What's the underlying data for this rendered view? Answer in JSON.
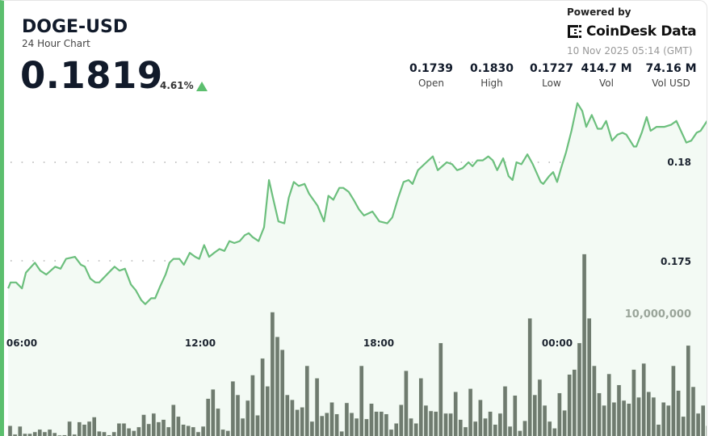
{
  "header": {
    "symbol": "DOGE-USD",
    "subtitle": "24 Hour Chart",
    "price": "0.1819",
    "change_percent": "4.61%",
    "change_direction": "up",
    "powered_by": "Powered by",
    "brand": "CoinDesk Data",
    "timestamp": "10 Nov 2025 05:14 (GMT)"
  },
  "stats": [
    {
      "value": "0.1739",
      "label": "Open"
    },
    {
      "value": "0.1830",
      "label": "High"
    },
    {
      "value": "0.1727",
      "label": "Low"
    },
    {
      "value": "414.7 M",
      "label": "Vol"
    },
    {
      "value": "74.16 M",
      "label": "Vol USD"
    }
  ],
  "colors": {
    "accent": "#5cbf6e",
    "line": "#6cbf7d",
    "volume_bar": "#6f7b6f",
    "text": "#111a2a"
  },
  "chart_data": {
    "type": "area",
    "grid": "dotted horizontal",
    "x_tick_labels": [
      "06:00",
      "12:00",
      "18:00",
      "00:00"
    ],
    "y_tick_labels": [
      "0.18",
      "0.175"
    ],
    "volume_tick_label": "10,000,000",
    "price_series": [
      [
        "05:34",
        0.1736
      ],
      [
        "05:39",
        0.1739
      ],
      [
        "05:50",
        0.1739
      ],
      [
        "06:02",
        0.1736
      ],
      [
        "06:10",
        0.1744
      ],
      [
        "06:28",
        0.1749
      ],
      [
        "06:39",
        0.1745
      ],
      [
        "06:51",
        0.1743
      ],
      [
        "07:09",
        0.1747
      ],
      [
        "07:20",
        0.1746
      ],
      [
        "07:31",
        0.1751
      ],
      [
        "07:49",
        0.1752
      ],
      [
        "08:01",
        0.1748
      ],
      [
        "08:09",
        0.1747
      ],
      [
        "08:20",
        0.1741
      ],
      [
        "08:30",
        0.1739
      ],
      [
        "08:38",
        0.1739
      ],
      [
        "09:01",
        0.1745
      ],
      [
        "09:09",
        0.1747
      ],
      [
        "09:19",
        0.1745
      ],
      [
        "09:30",
        0.1746
      ],
      [
        "09:42",
        0.1738
      ],
      [
        "09:52",
        0.1735
      ],
      [
        "10:03",
        0.173
      ],
      [
        "10:11",
        0.1728
      ],
      [
        "10:23",
        0.1731
      ],
      [
        "10:31",
        0.1731
      ],
      [
        "10:41",
        0.1737
      ],
      [
        "10:52",
        0.1743
      ],
      [
        "11:00",
        0.1749
      ],
      [
        "11:08",
        0.1751
      ],
      [
        "11:20",
        0.1751
      ],
      [
        "11:29",
        0.1748
      ],
      [
        "11:41",
        0.1754
      ],
      [
        "11:52",
        0.1752
      ],
      [
        "12:00",
        0.1751
      ],
      [
        "12:10",
        0.1758
      ],
      [
        "12:20",
        0.1752
      ],
      [
        "12:30",
        0.1754
      ],
      [
        "12:41",
        0.1756
      ],
      [
        "12:51",
        0.1755
      ],
      [
        "13:01",
        0.176
      ],
      [
        "13:11",
        0.1759
      ],
      [
        "13:22",
        0.176
      ],
      [
        "13:32",
        0.1763
      ],
      [
        "13:40",
        0.1764
      ],
      [
        "13:48",
        0.1762
      ],
      [
        "14:00",
        0.176
      ],
      [
        "14:11",
        0.1767
      ],
      [
        "14:21",
        0.1791
      ],
      [
        "14:29",
        0.1782
      ],
      [
        "14:40",
        0.177
      ],
      [
        "14:52",
        0.1769
      ],
      [
        "15:01",
        0.1782
      ],
      [
        "15:11",
        0.179
      ],
      [
        "15:21",
        0.1788
      ],
      [
        "15:33",
        0.1789
      ],
      [
        "15:42",
        0.1784
      ],
      [
        "15:59",
        0.1778
      ],
      [
        "16:12",
        0.177
      ],
      [
        "16:21",
        0.1783
      ],
      [
        "16:31",
        0.1781
      ],
      [
        "16:43",
        0.1787
      ],
      [
        "16:51",
        0.1787
      ],
      [
        "17:02",
        0.1785
      ],
      [
        "17:12",
        0.1781
      ],
      [
        "17:23",
        0.1776
      ],
      [
        "17:33",
        0.1773
      ],
      [
        "17:50",
        0.1775
      ],
      [
        "18:04",
        0.177
      ],
      [
        "18:20",
        0.1769
      ],
      [
        "18:30",
        0.1772
      ],
      [
        "18:42",
        0.1782
      ],
      [
        "18:53",
        0.179
      ],
      [
        "19:03",
        0.1791
      ],
      [
        "19:11",
        0.1789
      ],
      [
        "19:22",
        0.1796
      ],
      [
        "19:39",
        0.18
      ],
      [
        "19:52",
        0.1803
      ],
      [
        "20:02",
        0.1796
      ],
      [
        "20:20",
        0.18
      ],
      [
        "20:31",
        0.1799
      ],
      [
        "20:41",
        0.1796
      ],
      [
        "20:52",
        0.1797
      ],
      [
        "21:04",
        0.18
      ],
      [
        "21:12",
        0.1798
      ],
      [
        "21:22",
        0.1801
      ],
      [
        "21:33",
        0.1801
      ],
      [
        "21:44",
        0.1803
      ],
      [
        "21:53",
        0.1801
      ],
      [
        "22:02",
        0.1796
      ],
      [
        "22:14",
        0.1802
      ],
      [
        "22:25",
        0.1793
      ],
      [
        "22:33",
        0.1791
      ],
      [
        "22:41",
        0.18
      ],
      [
        "22:51",
        0.1799
      ],
      [
        "23:03",
        0.1804
      ],
      [
        "23:14",
        0.1799
      ],
      [
        "23:30",
        0.179
      ],
      [
        "23:35",
        0.1789
      ],
      [
        "23:47",
        0.1793
      ],
      [
        "23:55",
        0.1795
      ],
      [
        "00:03",
        0.179
      ],
      [
        "00:11",
        0.1797
      ],
      [
        "00:21",
        0.1805
      ],
      [
        "00:32",
        0.1816
      ],
      [
        "00:44",
        0.183
      ],
      [
        "00:54",
        0.1826
      ],
      [
        "01:02",
        0.1818
      ],
      [
        "01:13",
        0.1824
      ],
      [
        "01:25",
        0.1817
      ],
      [
        "01:33",
        0.1817
      ],
      [
        "01:42",
        0.1821
      ],
      [
        "01:54",
        0.1811
      ],
      [
        "02:05",
        0.1814
      ],
      [
        "02:15",
        0.1815
      ],
      [
        "02:23",
        0.1814
      ],
      [
        "02:38",
        0.1808
      ],
      [
        "02:43",
        0.1808
      ],
      [
        "02:54",
        0.1815
      ],
      [
        "03:04",
        0.1823
      ],
      [
        "03:12",
        0.1816
      ],
      [
        "03:24",
        0.1818
      ],
      [
        "03:40",
        0.1818
      ],
      [
        "03:53",
        0.1819
      ],
      [
        "04:04",
        0.1821
      ],
      [
        "04:24",
        0.181
      ],
      [
        "04:34",
        0.1811
      ],
      [
        "04:45",
        0.1815
      ],
      [
        "04:53",
        0.1816
      ],
      [
        "05:06",
        0.1821
      ],
      [
        "05:14",
        0.1819
      ]
    ],
    "volume_series": {
      "start": "05:38",
      "interval_minutes": 10,
      "values": [
        900000,
        200000,
        850000,
        260000,
        260000,
        400000,
        600000,
        400000,
        600000,
        330000,
        130000,
        150000,
        1250000,
        200000,
        1200000,
        1000000,
        1250000,
        1600000,
        450000,
        400000,
        150000,
        400000,
        1100000,
        1100000,
        700000,
        500000,
        800000,
        1800000,
        1050000,
        1900000,
        1200000,
        1400000,
        800000,
        2600000,
        1650000,
        1000000,
        900000,
        800000,
        400000,
        850000,
        3100000,
        3850000,
        2300000,
        600000,
        500000,
        4500000,
        3400000,
        1500000,
        2950000,
        5000000,
        1750000,
        6350000,
        4100000,
        10100000,
        8100000,
        7050000,
        3400000,
        3000000,
        2200000,
        2400000,
        5750000,
        1250000,
        4750000,
        1700000,
        1950000,
        2800000,
        1850000,
        450000,
        2750000,
        1950000,
        1500000,
        5750000,
        1450000,
        2700000,
        2050000,
        2050000,
        1850000,
        600000,
        1100000,
        2600000,
        5350000,
        1500000,
        1100000,
        4750000,
        2550000,
        2100000,
        2050000,
        7600000,
        1900000,
        1900000,
        3650000,
        1400000,
        800000,
        3900000,
        1250000,
        3000000,
        1500000,
        2050000,
        1000000,
        1900000,
        4100000,
        850000,
        3350000,
        500000,
        1300000,
        9600000,
        3400000,
        4650000,
        2550000,
        1250000,
        700000,
        3550000,
        2150000,
        5050000,
        5450000,
        7600000,
        14800000,
        9600000,
        5750000,
        3550000,
        2550000,
        5100000,
        2800000,
        4200000,
        2950000,
        2700000,
        5450000,
        3200000,
        5950000,
        3650000,
        3200000,
        1000000,
        2800000,
        2550000,
        5750000,
        3750000,
        1650000,
        7400000,
        4050000,
        1900000,
        2550000,
        900000
      ]
    }
  }
}
